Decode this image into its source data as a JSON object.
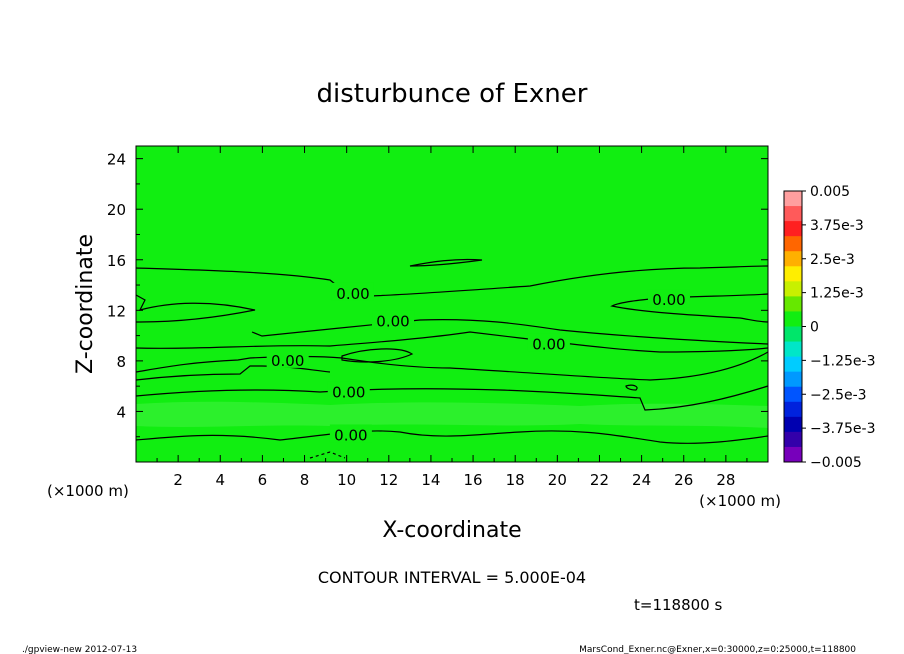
{
  "chart_data": {
    "type": "heatmap",
    "title": "disturbunce of Exner",
    "xlabel": "X-coordinate",
    "ylabel": "Z-coordinate",
    "x_unit": "(×1000 m)",
    "y_unit": "(×1000 m)",
    "xlim": [
      0,
      30
    ],
    "ylim": [
      0,
      25
    ],
    "x_ticks": [
      2,
      4,
      6,
      8,
      10,
      12,
      14,
      16,
      18,
      20,
      22,
      24,
      26,
      28
    ],
    "y_ticks": [
      4,
      8,
      12,
      16,
      20,
      24
    ],
    "field_fill_color": "#11ee11",
    "lower_band_color": "#33f033",
    "contour_labels": [
      {
        "text": "0.00",
        "x": 10.3,
        "z": 13.3
      },
      {
        "text": "0.00",
        "x": 25.3,
        "z": 12.8
      },
      {
        "text": "0.00",
        "x": 12.2,
        "z": 11.1
      },
      {
        "text": "0.00",
        "x": 19.6,
        "z": 9.3
      },
      {
        "text": "0.00",
        "x": 7.2,
        "z": 8.0
      },
      {
        "text": "0.00",
        "x": 10.1,
        "z": 5.5
      },
      {
        "text": "0.00",
        "x": 10.2,
        "z": 2.1
      }
    ],
    "colorbar": {
      "labels": [
        "0.005",
        "3.75e-3",
        "2.5e-3",
        "1.25e-3",
        "0",
        "−1.25e-3",
        "−2.5e-3",
        "−3.75e-3",
        "−0.005"
      ],
      "colors": [
        "#ff9f9f",
        "#ff5a5a",
        "#ff2020",
        "#ff6600",
        "#ffb000",
        "#ffee00",
        "#c8f000",
        "#66e800",
        "#11ee11",
        "#00e66a",
        "#00e6c8",
        "#00ccff",
        "#0099ff",
        "#0055ff",
        "#0022dd",
        "#0000b0",
        "#3300aa",
        "#7700bb"
      ]
    },
    "contour_interval_text": "CONTOUR INTERVAL = 5.000E-04",
    "time_text": "t=118800 s"
  },
  "footer": {
    "left": "./gpview-new  2012-07-13",
    "right": "MarsCond_Exner.nc@Exner,x=0:30000,z=0:25000,t=118800"
  }
}
